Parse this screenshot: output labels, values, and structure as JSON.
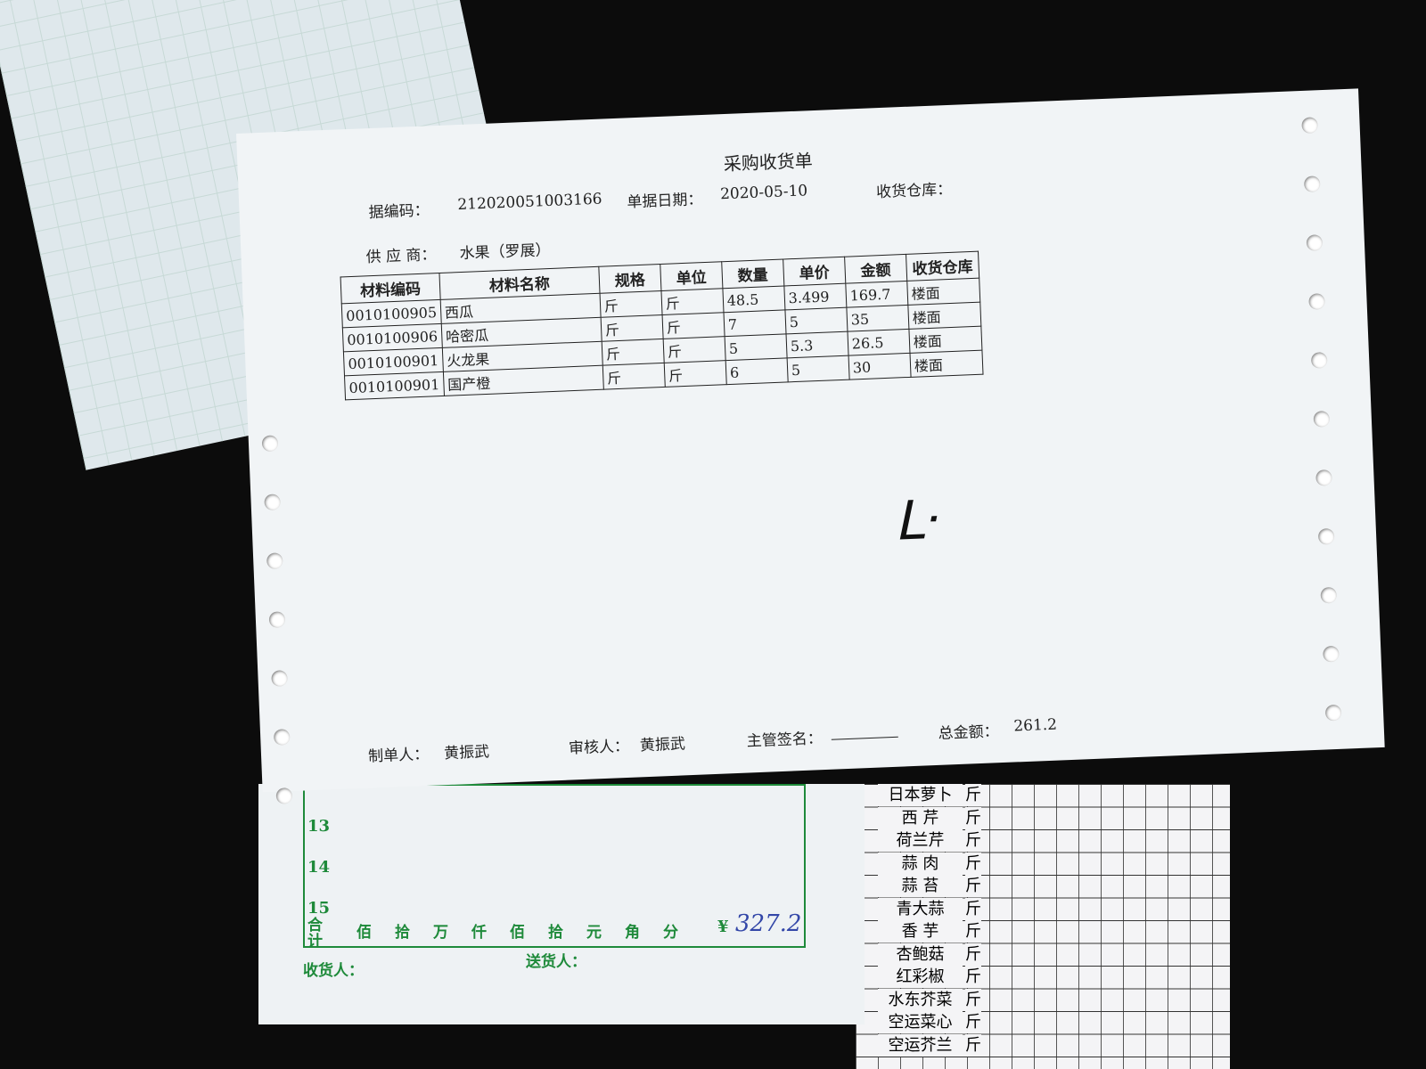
{
  "header": {
    "title": "采购收货单",
    "code_label": "据编码：",
    "code": "212020051003166",
    "date_label": "单据日期：",
    "date": "2020-05-10",
    "warehouse_label": "收货仓库：",
    "supplier_label": "供 应 商：",
    "supplier": "水果（罗展）"
  },
  "table": {
    "columns": [
      "材料编码",
      "材料名称",
      "规格",
      "单位",
      "数量",
      "单价",
      "金额",
      "收货仓库"
    ],
    "rows": [
      [
        "0010100905",
        "西瓜",
        "斤",
        "斤",
        48.5,
        3.499,
        169.7,
        "楼面"
      ],
      [
        "0010100906",
        "哈密瓜",
        "斤",
        "斤",
        7,
        5,
        35,
        "楼面"
      ],
      [
        "0010100901",
        "火龙果",
        "斤",
        "斤",
        5,
        5.3,
        26.5,
        "楼面"
      ],
      [
        "0010100901",
        "国产橙",
        "斤",
        "斤",
        6,
        5,
        30,
        "楼面"
      ]
    ]
  },
  "footer": {
    "maker_label": "制单人：",
    "maker": "黄振武",
    "reviewer_label": "审核人：",
    "reviewer": "黄振武",
    "manager_label": "主管签名：",
    "total_label": "总金额：",
    "total": 261.2
  },
  "green_form": {
    "row_numbers": [
      "13",
      "14",
      "15"
    ],
    "sum_label": "合计",
    "units": [
      "佰",
      "拾",
      "万",
      "仟",
      "佰",
      "拾",
      "元",
      "角",
      "分"
    ],
    "currency": "¥",
    "handwritten_total": "327.2",
    "receiver_label": "收货人：",
    "sender_label": "送货人："
  },
  "veg_list": {
    "items": [
      [
        "日本萝卜",
        "斤"
      ],
      [
        "西 芹",
        "斤"
      ],
      [
        "荷兰芹",
        "斤"
      ],
      [
        "蒜 肉",
        "斤"
      ],
      [
        "蒜 苔",
        "斤"
      ],
      [
        "青大蒜",
        "斤"
      ],
      [
        "香 芋",
        "斤"
      ],
      [
        "杏鲍菇",
        "斤"
      ],
      [
        "红彩椒",
        "斤"
      ],
      [
        "水东芥菜",
        "斤"
      ],
      [
        "空运菜心",
        "斤"
      ],
      [
        "空运芥兰",
        "斤"
      ]
    ]
  }
}
